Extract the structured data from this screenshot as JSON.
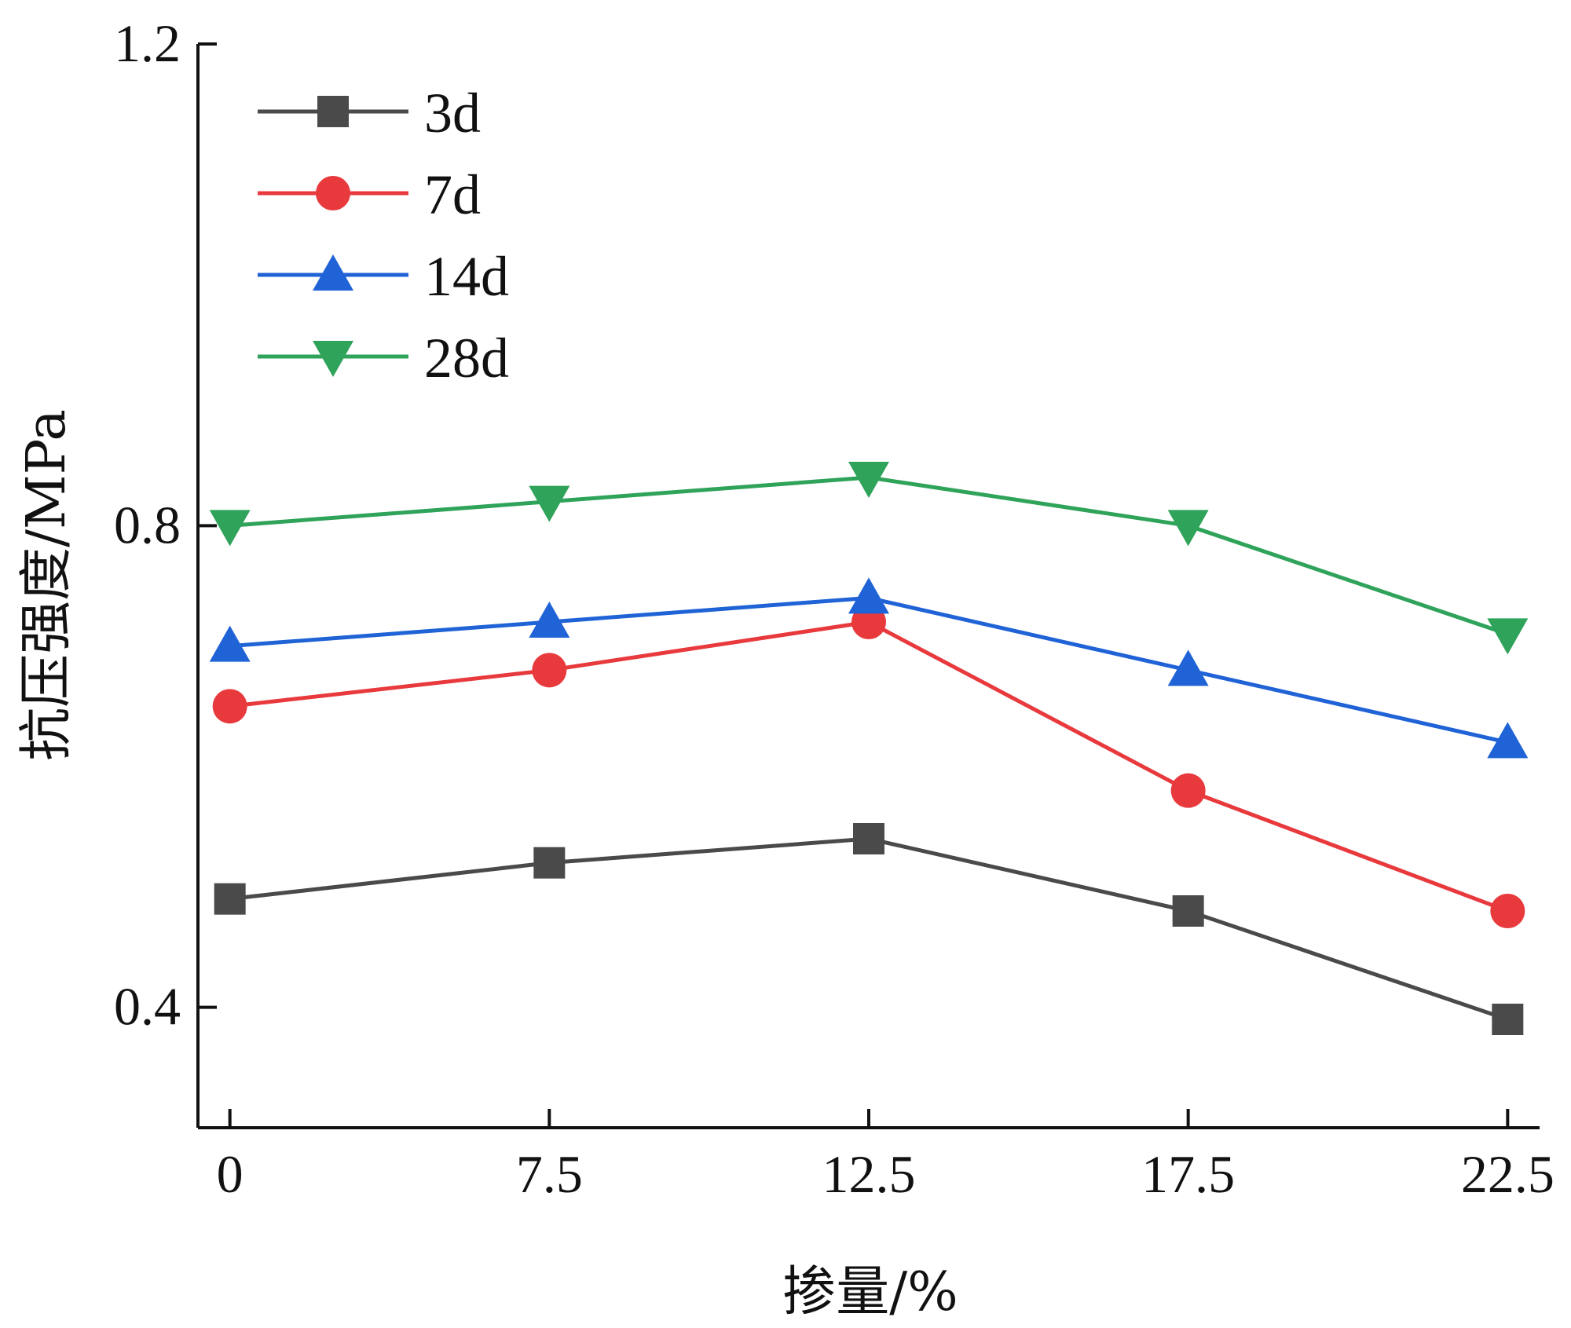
{
  "chart_data": {
    "type": "line",
    "title": "",
    "xlabel": "掺量/%",
    "ylabel": "抗压强度/MPa",
    "categories": [
      "0",
      "7.5",
      "12.5",
      "17.5",
      "22.5"
    ],
    "xlim": [
      -0.1,
      4.1
    ],
    "ylim": [
      0.3,
      1.2
    ],
    "yticks": [
      0.4,
      0.8,
      1.2
    ],
    "ytick_labels": [
      "0.4",
      "0.8",
      "1.2"
    ],
    "legend_position": "top-left",
    "series": [
      {
        "name": "3d",
        "marker": "square",
        "color": "#4a4a4a",
        "values": [
          0.49,
          0.52,
          0.54,
          0.48,
          0.39
        ]
      },
      {
        "name": "7d",
        "marker": "circle",
        "color": "#e8393d",
        "values": [
          0.65,
          0.68,
          0.72,
          0.58,
          0.48
        ]
      },
      {
        "name": "14d",
        "marker": "triangle-up",
        "color": "#1f63d6",
        "values": [
          0.7,
          0.72,
          0.74,
          0.68,
          0.62
        ]
      },
      {
        "name": "28d",
        "marker": "triangle-down",
        "color": "#2fa35a",
        "values": [
          0.8,
          0.82,
          0.84,
          0.8,
          0.71
        ]
      }
    ]
  }
}
